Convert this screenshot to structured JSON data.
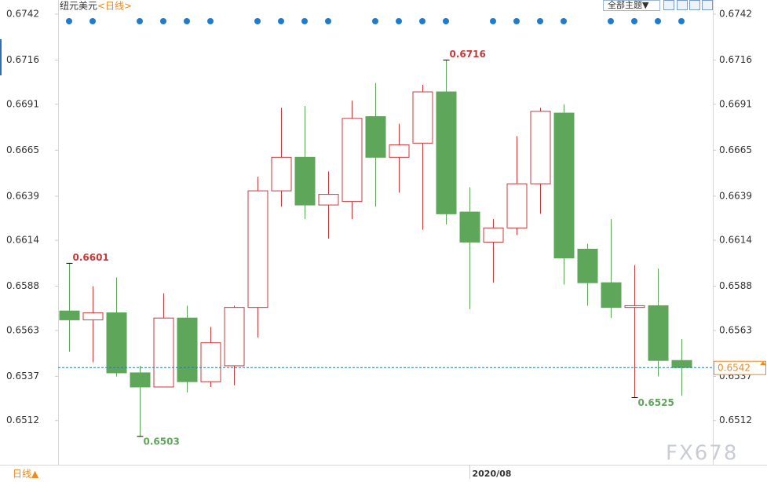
{
  "chart_data": {
    "type": "candlestick",
    "title": "纽元美元",
    "period": "<日线>",
    "theme_button": "全部主题▼",
    "period_button": "日线▲",
    "watermark": "FX678",
    "categories": [
      null,
      null,
      null,
      null,
      null,
      null,
      null,
      null,
      null,
      null,
      null,
      null,
      null,
      null,
      null,
      null,
      null,
      "2020/08",
      null,
      null,
      null,
      null,
      null,
      null,
      null,
      null,
      null
    ],
    "open": [
      0.6574,
      0.6569,
      0.6573,
      0.6539,
      0.6531,
      0.657,
      0.6534,
      0.6543,
      0.6576,
      0.6642,
      0.6661,
      0.6634,
      0.6636,
      0.6684,
      0.6661,
      0.6669,
      0.6698,
      0.663,
      0.6613,
      0.6621,
      0.6646,
      0.6686,
      0.6609,
      0.659,
      0.6576,
      0.6577,
      0.6546
    ],
    "high": [
      0.6601,
      0.6588,
      0.6593,
      0.6543,
      0.6584,
      0.6577,
      0.6565,
      0.6577,
      0.665,
      0.6689,
      0.669,
      0.6653,
      0.6693,
      0.6703,
      0.668,
      0.6702,
      0.6716,
      0.6644,
      0.6626,
      0.6673,
      0.6689,
      0.6691,
      0.6612,
      0.6626,
      0.66,
      0.6598,
      0.6558
    ],
    "low": [
      0.6551,
      0.6545,
      0.6537,
      0.6503,
      0.6531,
      0.6528,
      0.6531,
      0.6532,
      0.6559,
      0.6633,
      0.6626,
      0.6615,
      0.6626,
      0.6633,
      0.6641,
      0.662,
      0.6623,
      0.6575,
      0.659,
      0.6617,
      0.6629,
      0.6589,
      0.6577,
      0.657,
      0.6525,
      0.6537,
      0.6526
    ],
    "close": [
      0.6569,
      0.6573,
      0.6539,
      0.6531,
      0.657,
      0.6534,
      0.6556,
      0.6576,
      0.6642,
      0.6661,
      0.6634,
      0.664,
      0.6683,
      0.6661,
      0.6668,
      0.6698,
      0.6629,
      0.6613,
      0.6621,
      0.6646,
      0.6687,
      0.6604,
      0.659,
      0.6576,
      0.6577,
      0.6546,
      0.6542
    ],
    "up_color": "#c8393b",
    "down_color": "#5ea65a",
    "last_price": 0.6542,
    "last_price_color": "#f08a1c",
    "ylim": [
      0.6487,
      0.675
    ],
    "yticks": [
      0.6742,
      0.6716,
      0.6691,
      0.6665,
      0.6639,
      0.6614,
      0.6588,
      0.6563,
      0.6537,
      0.6512
    ],
    "grid": false
  }
}
